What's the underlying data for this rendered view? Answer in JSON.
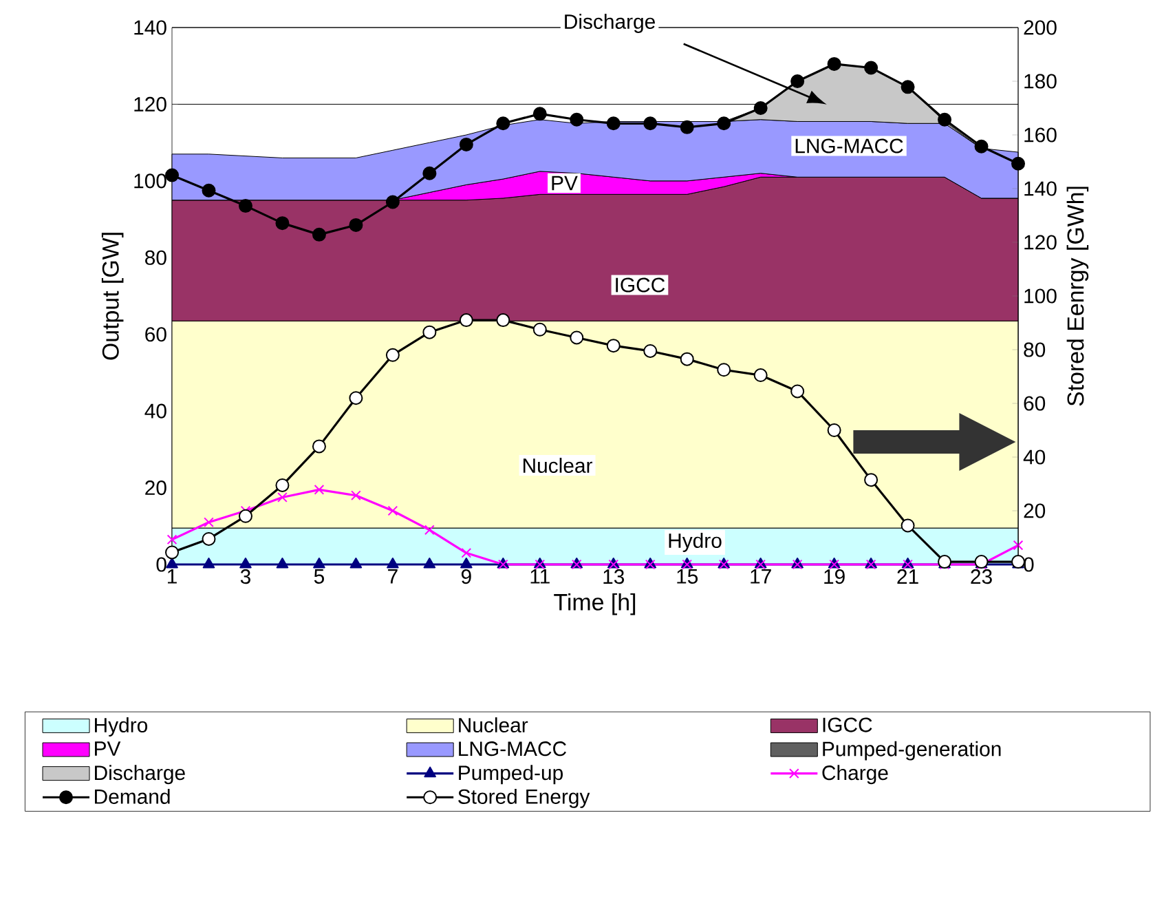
{
  "chart_data": {
    "type": "area",
    "xlabel": "Time [h]",
    "ylabel": "Output [GW]",
    "y2label": "Stored Eenrgy [GWh]",
    "x": [
      1,
      2,
      3,
      4,
      5,
      6,
      7,
      8,
      9,
      10,
      11,
      12,
      13,
      14,
      15,
      16,
      17,
      18,
      19,
      20,
      21,
      22,
      23,
      24
    ],
    "xlim": [
      1,
      24
    ],
    "xticks": [
      1,
      3,
      5,
      7,
      9,
      11,
      13,
      15,
      17,
      19,
      21,
      23
    ],
    "ylim": [
      0,
      140
    ],
    "yticks": [
      0,
      20,
      40,
      60,
      80,
      100,
      120,
      140
    ],
    "y2lim": [
      0,
      200
    ],
    "y2ticks": [
      0,
      20,
      40,
      60,
      80,
      100,
      120,
      140,
      160,
      180,
      200
    ],
    "grid": "y",
    "legend": "bottom",
    "stacked": true,
    "annotations": [
      "Discharge",
      "PV",
      "LNG-MACC",
      "IGCC",
      "Nuclear",
      "Hydro"
    ],
    "series": [
      {
        "name": "Hydro",
        "color": "#ccffff",
        "values": [
          9.5,
          9.5,
          9.5,
          9.5,
          9.5,
          9.5,
          9.5,
          9.5,
          9.5,
          9.5,
          9.5,
          9.5,
          9.5,
          9.5,
          9.5,
          9.5,
          9.5,
          9.5,
          9.5,
          9.5,
          9.5,
          9.5,
          9.5,
          9.5
        ]
      },
      {
        "name": "Nuclear",
        "color": "#ffffcc",
        "values": [
          54,
          54,
          54,
          54,
          54,
          54,
          54,
          54,
          54,
          54,
          54,
          54,
          54,
          54,
          54,
          54,
          54,
          54,
          54,
          54,
          54,
          54,
          54,
          54
        ]
      },
      {
        "name": "IGCC",
        "color": "#993366",
        "values": [
          31.5,
          31.5,
          31.5,
          31.5,
          31.5,
          31.5,
          31.5,
          31.5,
          31.5,
          32,
          33,
          33,
          33,
          33,
          33,
          35,
          37.5,
          37.5,
          37.5,
          37.5,
          37.5,
          37.5,
          32,
          32
        ]
      },
      {
        "name": "PV",
        "color": "#ff00ff",
        "values": [
          0,
          0,
          0,
          0,
          0,
          0,
          0,
          2,
          4,
          5,
          6,
          5.5,
          4.5,
          3.5,
          3.5,
          2.5,
          1,
          0,
          0,
          0,
          0,
          0,
          0,
          0
        ]
      },
      {
        "name": "LNG-MACC",
        "color": "#9999ff",
        "values": [
          12,
          12,
          11.5,
          11,
          11,
          11,
          13,
          13,
          13,
          14,
          13.5,
          13,
          14.5,
          15.5,
          15.5,
          14.5,
          14,
          14.5,
          14.5,
          14.5,
          14,
          14,
          13,
          12
        ]
      },
      {
        "name": "Pumped-generation",
        "color": "#606060",
        "values": [
          null,
          null,
          null,
          null,
          null,
          null,
          null,
          null,
          null,
          null,
          null,
          null,
          null,
          null,
          null,
          null,
          null,
          null,
          null,
          null,
          null,
          null,
          null,
          null
        ]
      },
      {
        "name": "Discharge",
        "color": "#c8c8c8",
        "values": [
          null,
          null,
          null,
          null,
          null,
          null,
          null,
          null,
          null,
          null,
          null,
          null,
          null,
          null,
          null,
          0,
          3,
          10.5,
          15,
          14,
          9.5,
          0.5,
          0,
          null
        ]
      },
      {
        "name": "Pumped-up",
        "type": "line",
        "color": "#000080",
        "marker": "triangle",
        "values": [
          0,
          0,
          0,
          0,
          0,
          0,
          0,
          0,
          0,
          0,
          0,
          0,
          0,
          0,
          0,
          0,
          0,
          0,
          0,
          0,
          0,
          0,
          0,
          0
        ]
      },
      {
        "name": "Charge",
        "type": "line",
        "color": "#ff00ff",
        "marker": "cross",
        "values": [
          6.5,
          11,
          14,
          17.5,
          19.5,
          18,
          14,
          9,
          3,
          0,
          0,
          0,
          0,
          0,
          0,
          0,
          0,
          0,
          0,
          0,
          0,
          0,
          0,
          5
        ]
      },
      {
        "name": "Demand",
        "type": "line",
        "color": "#000000",
        "marker": "circle",
        "values": [
          101.5,
          97.5,
          93.5,
          89,
          86,
          88.5,
          94.5,
          102,
          109.5,
          115,
          117.5,
          116,
          115,
          115,
          114,
          115,
          119,
          126,
          130.5,
          129.5,
          124.5,
          116,
          109,
          104.5
        ]
      },
      {
        "name": "Stored Energy",
        "type": "line",
        "color": "#000000",
        "marker": "circle",
        "axis": "y2",
        "values": [
          4.5,
          9.5,
          18,
          29.5,
          44,
          62,
          78,
          86.5,
          91,
          91,
          87.5,
          84.5,
          81.5,
          79.5,
          76.5,
          72.5,
          70.5,
          64.5,
          50,
          31.5,
          14.5,
          1,
          1,
          1
        ]
      }
    ]
  }
}
